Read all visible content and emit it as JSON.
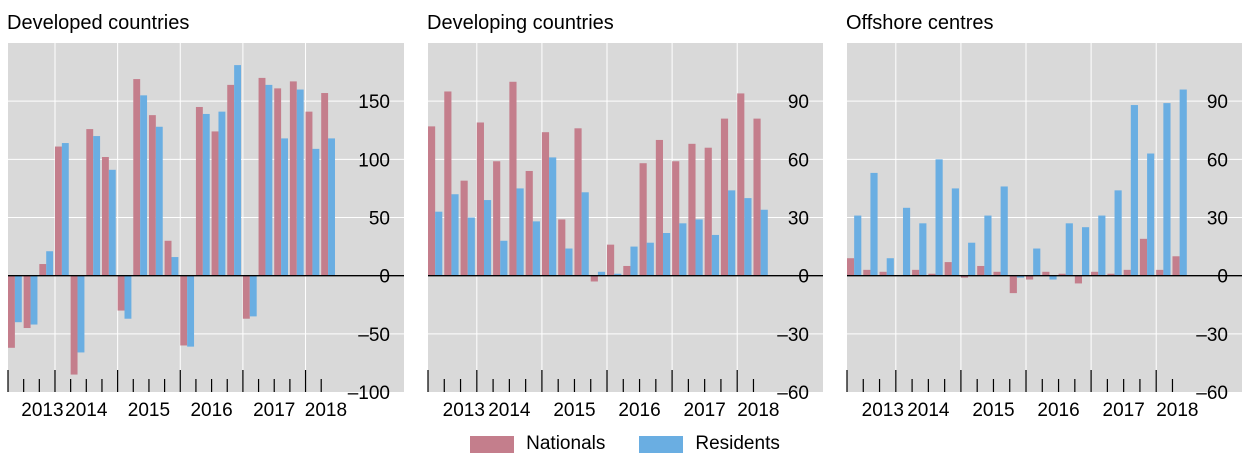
{
  "colors": {
    "nationals": "#c47e8c",
    "residents": "#6aaee2",
    "panel_bg": "#d9d9d9",
    "grid": "#ffffff"
  },
  "legend": {
    "nationals_label": "Nationals",
    "residents_label": "Residents"
  },
  "chart_data": [
    {
      "type": "bar",
      "title": "Developed countries",
      "year_labels": [
        "2013",
        "2014",
        "2015",
        "2016",
        "2017",
        "2018"
      ],
      "ylim": [
        -100,
        200
      ],
      "yticks": [
        -100,
        -50,
        0,
        50,
        100,
        150
      ],
      "ytick_labels": [
        "–100",
        "–50",
        "0",
        "50",
        "100",
        "150"
      ],
      "x": [
        "2013Q1",
        "2013Q2",
        "2013Q3",
        "2013Q4",
        "2014Q1",
        "2014Q2",
        "2014Q3",
        "2014Q4",
        "2015Q1",
        "2015Q2",
        "2015Q3",
        "2015Q4",
        "2016Q1",
        "2016Q2",
        "2016Q3",
        "2016Q4",
        "2017Q1",
        "2017Q2",
        "2017Q3",
        "2017Q4",
        "2018Q1"
      ],
      "series": [
        {
          "name": "Nationals",
          "values": [
            -62,
            -45,
            10,
            111,
            -85,
            126,
            102,
            -30,
            169,
            138,
            30,
            -60,
            145,
            124,
            164,
            -37,
            170,
            161,
            167,
            141,
            157
          ]
        },
        {
          "name": "Residents",
          "values": [
            -40,
            -42,
            21,
            114,
            -66,
            120,
            91,
            -37,
            155,
            128,
            16,
            -61,
            139,
            141,
            181,
            -35,
            164,
            118,
            160,
            109,
            118
          ]
        }
      ]
    },
    {
      "type": "bar",
      "title": "Developing countries",
      "year_labels": [
        "2013",
        "2014",
        "2015",
        "2016",
        "2017",
        "2018"
      ],
      "ylim": [
        -60,
        120
      ],
      "yticks": [
        -60,
        -30,
        0,
        30,
        60,
        90
      ],
      "ytick_labels": [
        "–60",
        "–30",
        "0",
        "30",
        "60",
        "90"
      ],
      "x": [
        "2013Q1",
        "2013Q2",
        "2013Q3",
        "2013Q4",
        "2014Q1",
        "2014Q2",
        "2014Q3",
        "2014Q4",
        "2015Q1",
        "2015Q2",
        "2015Q3",
        "2015Q4",
        "2016Q1",
        "2016Q2",
        "2016Q3",
        "2016Q4",
        "2017Q1",
        "2017Q2",
        "2017Q3",
        "2017Q4",
        "2018Q1"
      ],
      "series": [
        {
          "name": "Nationals",
          "values": [
            77,
            95,
            49,
            79,
            59,
            100,
            54,
            74,
            29,
            76,
            -3,
            16,
            5,
            58,
            70,
            59,
            68,
            66,
            81,
            94,
            81
          ]
        },
        {
          "name": "Residents",
          "values": [
            33,
            42,
            30,
            39,
            18,
            45,
            28,
            61,
            14,
            43,
            2,
            1,
            15,
            17,
            22,
            27,
            29,
            21,
            44,
            40,
            34
          ]
        }
      ]
    },
    {
      "type": "bar",
      "title": "Offshore centres",
      "year_labels": [
        "2013",
        "2014",
        "2015",
        "2016",
        "2017",
        "2018"
      ],
      "ylim": [
        -60,
        120
      ],
      "yticks": [
        -60,
        -30,
        0,
        30,
        60,
        90
      ],
      "ytick_labels": [
        "–60",
        "–30",
        "0",
        "30",
        "60",
        "90"
      ],
      "x": [
        "2013Q1",
        "2013Q2",
        "2013Q3",
        "2013Q4",
        "2014Q1",
        "2014Q2",
        "2014Q3",
        "2014Q4",
        "2015Q1",
        "2015Q2",
        "2015Q3",
        "2015Q4",
        "2016Q1",
        "2016Q2",
        "2016Q3",
        "2016Q4",
        "2017Q1",
        "2017Q2",
        "2017Q3",
        "2017Q4",
        "2018Q1"
      ],
      "series": [
        {
          "name": "Nationals",
          "values": [
            9,
            3,
            2,
            0,
            3,
            1,
            7,
            -1,
            5,
            2,
            -9,
            -2,
            2,
            1,
            -4,
            2,
            1,
            3,
            19,
            3,
            10
          ]
        },
        {
          "name": "Residents",
          "values": [
            31,
            53,
            9,
            35,
            27,
            60,
            45,
            17,
            31,
            46,
            -1,
            14,
            -2,
            27,
            25,
            31,
            44,
            88,
            63,
            89,
            96
          ]
        }
      ]
    }
  ]
}
